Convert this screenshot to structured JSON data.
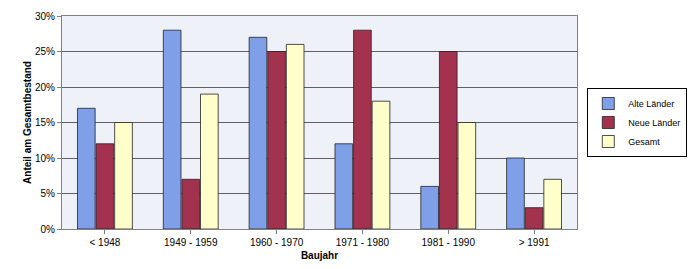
{
  "chart_data": {
    "type": "bar",
    "x_label": "Baujahr",
    "y_label": "Anteil am Gesamtbestand",
    "categories": [
      "< 1948",
      "1949 - 1959",
      "1960 - 1970",
      "1971 - 1980",
      "1981 - 1990",
      "> 1991"
    ],
    "series": [
      {
        "name": "Alte Länder",
        "color": "#7f9fe8",
        "values": [
          17,
          28,
          27,
          12,
          6,
          10
        ]
      },
      {
        "name": "Neue Länder",
        "color": "#a3324e",
        "values": [
          12,
          7,
          25,
          28,
          25,
          3
        ]
      },
      {
        "name": "Gesamt",
        "color": "#ffffcc",
        "values": [
          15,
          19,
          26,
          18,
          15,
          7
        ]
      }
    ],
    "ylim": [
      0,
      30
    ],
    "yticks": [
      {
        "value": 0,
        "label": "0%"
      },
      {
        "value": 5,
        "label": "5%"
      },
      {
        "value": 10,
        "label": "10%"
      },
      {
        "value": 15,
        "label": "15%"
      },
      {
        "value": 20,
        "label": "20%"
      },
      {
        "value": 25,
        "label": "25%"
      },
      {
        "value": 30,
        "label": "30%"
      }
    ],
    "grid": true,
    "legend": "right"
  }
}
